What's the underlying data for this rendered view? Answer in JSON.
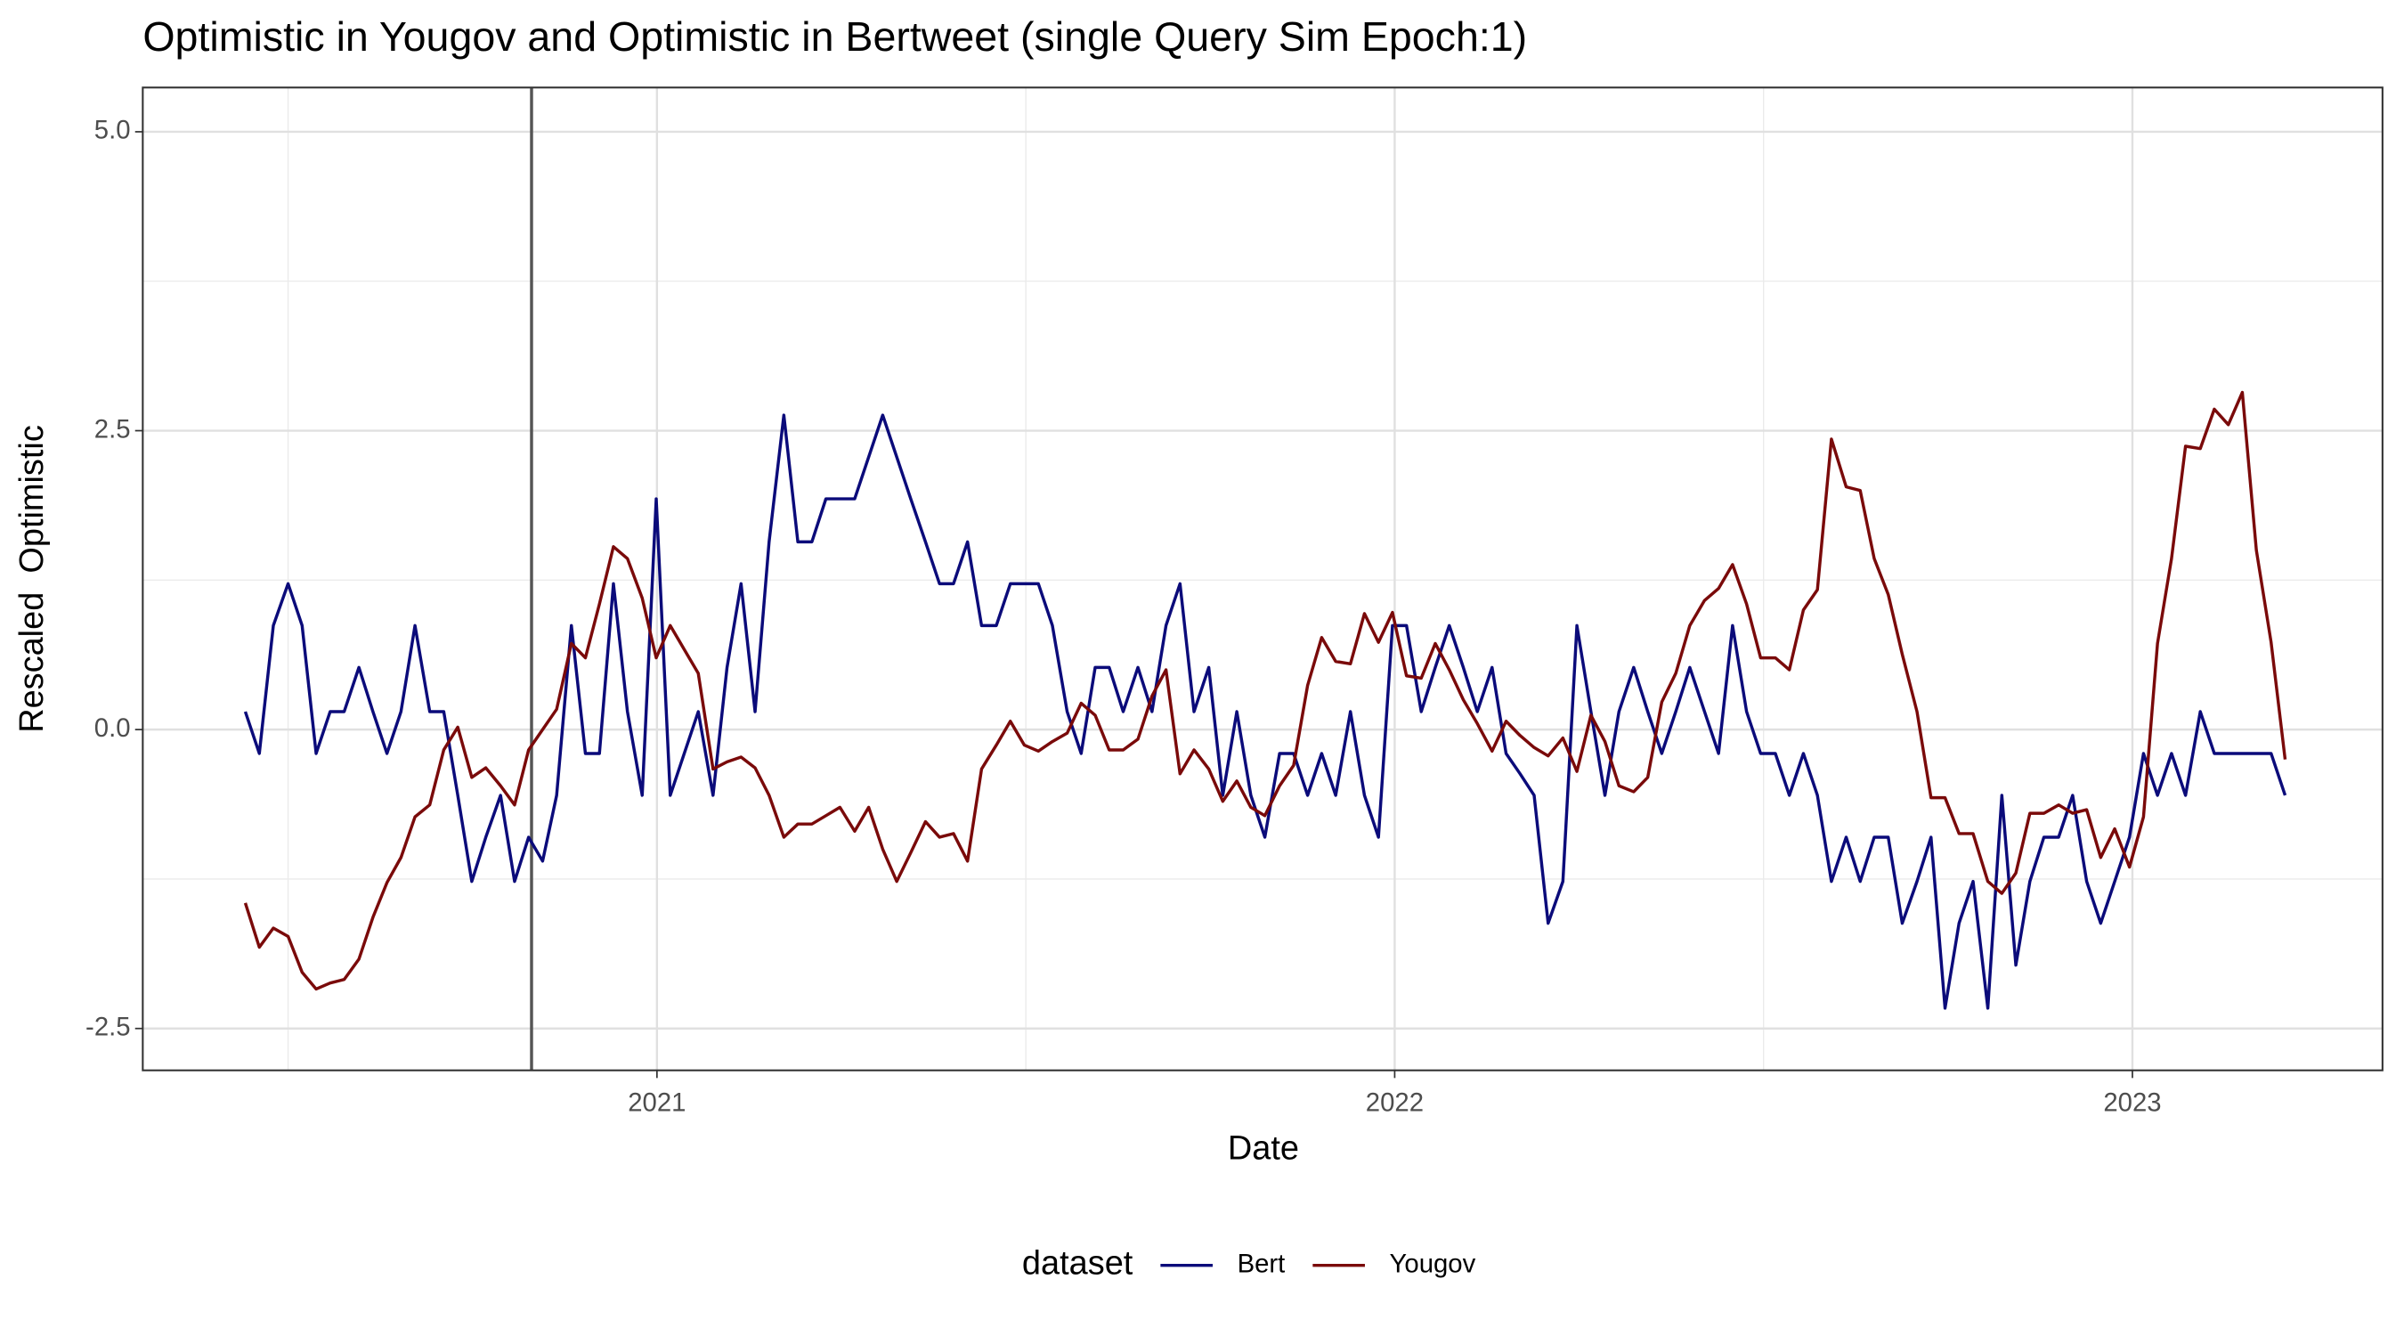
{
  "chart_data": {
    "type": "line",
    "title": "Optimistic in Yougov and Optimistic in Bertweet (single Query Sim Epoch:1)",
    "x_label": "Date",
    "y_label": "Rescaled  Optimistic",
    "legend_title": "dataset",
    "legend_position": "bottom",
    "grid": true,
    "vline": 2020.83,
    "vline_color": "#555555",
    "xlim": [
      2020.303,
      2023.339
    ],
    "xticks": [
      2021,
      2022,
      2023
    ],
    "ylim": [
      -2.85,
      5.37
    ],
    "yticks": [
      {
        "value": -2.5,
        "label": "-2.5"
      },
      {
        "value": 0,
        "label": "0.0"
      },
      {
        "value": 2.5,
        "label": "2.5"
      },
      {
        "value": 5,
        "label": "5.0"
      }
    ],
    "x": [
      2020.442,
      2020.461,
      2020.48,
      2020.5,
      2020.519,
      2020.538,
      2020.557,
      2020.576,
      2020.596,
      2020.615,
      2020.634,
      2020.653,
      2020.672,
      2020.692,
      2020.711,
      2020.73,
      2020.749,
      2020.768,
      2020.788,
      2020.807,
      2020.826,
      2020.845,
      2020.864,
      2020.884,
      2020.903,
      2020.922,
      2020.941,
      2020.96,
      2020.98,
      2020.999,
      2021.018,
      2021.037,
      2021.056,
      2021.076,
      2021.095,
      2021.114,
      2021.133,
      2021.152,
      2021.172,
      2021.191,
      2021.21,
      2021.229,
      2021.248,
      2021.268,
      2021.287,
      2021.306,
      2021.325,
      2021.344,
      2021.364,
      2021.383,
      2021.402,
      2021.421,
      2021.44,
      2021.46,
      2021.479,
      2021.498,
      2021.517,
      2021.536,
      2021.556,
      2021.575,
      2021.594,
      2021.613,
      2021.632,
      2021.652,
      2021.671,
      2021.69,
      2021.709,
      2021.728,
      2021.748,
      2021.767,
      2021.786,
      2021.805,
      2021.824,
      2021.844,
      2021.863,
      2021.882,
      2021.901,
      2021.92,
      2021.94,
      2021.959,
      2021.978,
      2021.997,
      2022.016,
      2022.036,
      2022.055,
      2022.074,
      2022.093,
      2022.112,
      2022.132,
      2022.151,
      2022.17,
      2022.189,
      2022.208,
      2022.228,
      2022.247,
      2022.266,
      2022.285,
      2022.304,
      2022.324,
      2022.343,
      2022.362,
      2022.381,
      2022.4,
      2022.42,
      2022.439,
      2022.458,
      2022.477,
      2022.496,
      2022.516,
      2022.535,
      2022.554,
      2022.573,
      2022.592,
      2022.612,
      2022.631,
      2022.65,
      2022.669,
      2022.688,
      2022.708,
      2022.727,
      2022.746,
      2022.765,
      2022.784,
      2022.804,
      2022.823,
      2022.842,
      2022.861,
      2022.88,
      2022.9,
      2022.919,
      2022.938,
      2022.957,
      2022.976,
      2022.996,
      2023.015,
      2023.034,
      2023.053,
      2023.072,
      2023.092,
      2023.111,
      2023.13,
      2023.149,
      2023.168,
      2023.188,
      2023.207
    ],
    "series": [
      {
        "name": "Bert",
        "color": "#0b0b7a",
        "values": [
          0.15,
          -0.2,
          0.87,
          1.22,
          0.87,
          -0.2,
          0.15,
          0.15,
          0.52,
          0.15,
          -0.2,
          0.15,
          0.87,
          0.15,
          0.15,
          -0.55,
          -1.27,
          -0.9,
          -0.55,
          -1.27,
          -0.9,
          -1.1,
          -0.55,
          0.87,
          -0.2,
          -0.2,
          1.22,
          0.15,
          -0.55,
          1.93,
          -0.55,
          -0.2,
          0.15,
          -0.55,
          0.52,
          1.22,
          0.15,
          1.57,
          2.63,
          1.57,
          1.57,
          1.93,
          1.93,
          1.93,
          2.28,
          2.63,
          2.28,
          1.93,
          1.57,
          1.22,
          1.22,
          1.57,
          0.87,
          0.87,
          1.22,
          1.22,
          1.22,
          0.87,
          0.15,
          -0.2,
          0.52,
          0.52,
          0.15,
          0.52,
          0.15,
          0.87,
          1.22,
          0.15,
          0.52,
          -0.55,
          0.15,
          -0.55,
          -0.9,
          -0.2,
          -0.2,
          -0.55,
          -0.2,
          -0.55,
          0.15,
          -0.55,
          -0.9,
          0.87,
          0.87,
          0.15,
          0.52,
          0.87,
          0.52,
          0.15,
          0.52,
          -0.2,
          -0.37,
          -0.55,
          -1.62,
          -1.27,
          0.87,
          0.15,
          -0.55,
          0.15,
          0.52,
          0.15,
          -0.2,
          0.15,
          0.52,
          0.15,
          -0.2,
          0.87,
          0.15,
          -0.2,
          -0.2,
          -0.55,
          -0.2,
          -0.55,
          -1.27,
          -0.9,
          -1.27,
          -0.9,
          -0.9,
          -1.62,
          -1.27,
          -0.9,
          -2.33,
          -1.62,
          -1.27,
          -2.33,
          -0.55,
          -1.97,
          -1.27,
          -0.9,
          -0.9,
          -0.55,
          -1.27,
          -1.62,
          -1.27,
          -0.9,
          -0.2,
          -0.55,
          -0.2,
          -0.55,
          0.15,
          -0.2,
          -0.2,
          -0.2,
          -0.2,
          -0.2,
          -0.55
        ]
      },
      {
        "name": "Yougov",
        "color": "#7a0a0a",
        "values": [
          -1.45,
          -1.82,
          -1.66,
          -1.73,
          -2.03,
          -2.17,
          -2.12,
          -2.09,
          -1.92,
          -1.57,
          -1.28,
          -1.07,
          -0.73,
          -0.63,
          -0.17,
          0.02,
          -0.4,
          -0.32,
          -0.47,
          -0.63,
          -0.17,
          0,
          0.17,
          0.72,
          0.6,
          1.05,
          1.53,
          1.43,
          1.1,
          0.6,
          0.87,
          0.67,
          0.47,
          -0.33,
          -0.27,
          -0.23,
          -0.32,
          -0.55,
          -0.9,
          -0.79,
          -0.79,
          -0.72,
          -0.65,
          -0.85,
          -0.65,
          -1.0,
          -1.27,
          -1.03,
          -0.77,
          -0.9,
          -0.87,
          -1.1,
          -0.33,
          -0.13,
          0.07,
          -0.13,
          -0.18,
          -0.1,
          -0.03,
          0.22,
          0.12,
          -0.17,
          -0.17,
          -0.08,
          0.28,
          0.5,
          -0.37,
          -0.17,
          -0.33,
          -0.6,
          -0.43,
          -0.65,
          -0.72,
          -0.47,
          -0.3,
          0.37,
          0.77,
          0.57,
          0.55,
          0.97,
          0.73,
          0.98,
          0.45,
          0.43,
          0.72,
          0.5,
          0.25,
          0.05,
          -0.18,
          0.07,
          -0.05,
          -0.15,
          -0.22,
          -0.07,
          -0.35,
          0.12,
          -0.1,
          -0.47,
          -0.52,
          -0.4,
          0.23,
          0.47,
          0.87,
          1.08,
          1.18,
          1.38,
          1.05,
          0.6,
          0.6,
          0.5,
          1.0,
          1.17,
          2.43,
          2.03,
          2.0,
          1.43,
          1.13,
          0.63,
          0.15,
          -0.57,
          -0.57,
          -0.87,
          -0.87,
          -1.27,
          -1.37,
          -1.2,
          -0.7,
          -0.7,
          -0.63,
          -0.7,
          -0.67,
          -1.07,
          -0.83,
          -1.15,
          -0.73,
          0.72,
          1.43,
          2.37,
          2.35,
          2.68,
          2.55,
          2.82,
          1.5,
          0.73,
          -0.25
        ]
      }
    ]
  }
}
